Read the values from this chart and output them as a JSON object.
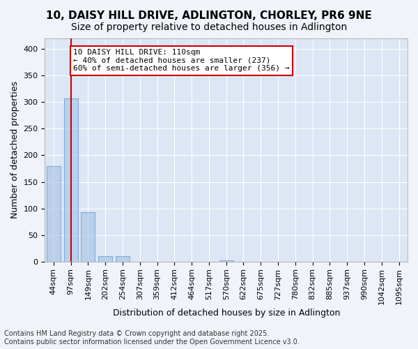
{
  "title_line1": "10, DAISY HILL DRIVE, ADLINGTON, CHORLEY, PR6 9NE",
  "title_line2": "Size of property relative to detached houses in Adlington",
  "xlabel": "Distribution of detached houses by size in Adlington",
  "ylabel": "Number of detached properties",
  "tick_labels": [
    "44sqm",
    "97sqm",
    "149sqm",
    "202sqm",
    "254sqm",
    "307sqm",
    "359sqm",
    "412sqm",
    "464sqm",
    "517sqm",
    "570sqm",
    "622sqm",
    "675sqm",
    "727sqm",
    "780sqm",
    "832sqm",
    "885sqm",
    "937sqm",
    "990sqm",
    "1042sqm",
    "1095sqm"
  ],
  "values": [
    180,
    307,
    93,
    10,
    10,
    0,
    0,
    0,
    0,
    0,
    2,
    0,
    0,
    0,
    0,
    0,
    0,
    0,
    0,
    0,
    0
  ],
  "bar_color": "#aec6e8",
  "bar_edge_color": "#5b9bd5",
  "bar_alpha": 0.7,
  "vline_x": 1.0,
  "vline_color": "#cc0000",
  "annotation_text": "10 DAISY HILL DRIVE: 110sqm\n← 40% of detached houses are smaller (237)\n60% of semi-detached houses are larger (356) →",
  "annotation_box_color": "#ffffff",
  "annotation_box_edge_color": "#cc0000",
  "ylim": [
    0,
    420
  ],
  "yticks": [
    0,
    50,
    100,
    150,
    200,
    250,
    300,
    350,
    400
  ],
  "footer_line1": "Contains HM Land Registry data © Crown copyright and database right 2025.",
  "footer_line2": "Contains public sector information licensed under the Open Government Licence v3.0.",
  "bg_color": "#f0f4fa",
  "plot_bg_color": "#dce6f5",
  "grid_color": "#ffffff",
  "title_fontsize": 11,
  "subtitle_fontsize": 10,
  "axis_label_fontsize": 9,
  "tick_fontsize": 8,
  "annotation_fontsize": 8,
  "footer_fontsize": 7
}
